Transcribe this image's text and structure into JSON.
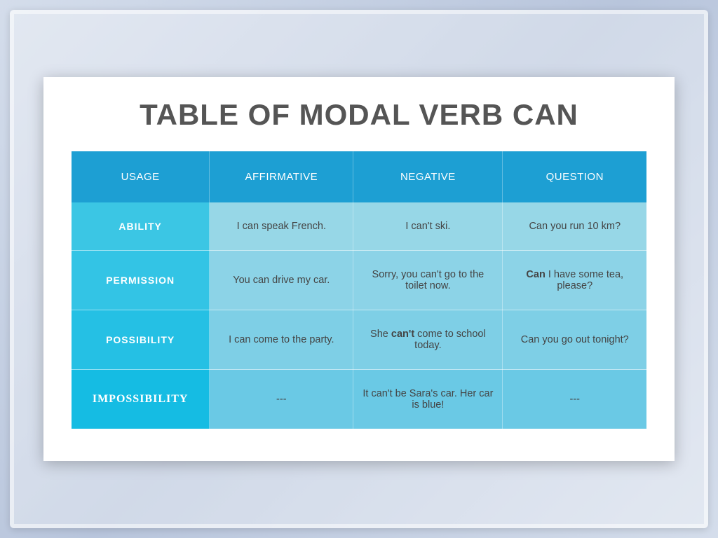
{
  "title": "TABLE OF MODAL VERB CAN",
  "table": {
    "columns": [
      "USAGE",
      "AFFIRMATIVE",
      "NEGATIVE",
      "QUESTION"
    ],
    "rows": [
      {
        "label": "ABILITY",
        "affirmative": "I can speak French.",
        "negative": "I can't ski.",
        "question": "Can you run 10 km?"
      },
      {
        "label": "PERMISSION",
        "affirmative": "You can drive my car.",
        "negative": "Sorry, you can't go to the toilet now.",
        "question_prefix": "Can",
        "question_suffix": " I have some tea, please?"
      },
      {
        "label": "POSSIBILITY",
        "affirmative": "I can come to the party.",
        "negative_prefix": "She ",
        "negative_bold": "can't",
        "negative_suffix": " come to school today.",
        "question": "Can you go out tonight?"
      },
      {
        "label": "IMPOSSIBILITY",
        "affirmative": "---",
        "negative": "It can't be Sara's car. Her car is blue!",
        "question": "---"
      }
    ],
    "header_bg": "#1d9fd3",
    "row_colors": [
      "#97d7e7",
      "#8cd3e7",
      "#7ecfe6",
      "#6ac9e5"
    ],
    "label_colors": [
      "#3bc6e4",
      "#33c4e5",
      "#25c0e4",
      "#15bce3"
    ],
    "title_fontsize": 42,
    "cell_fontsize": 14.5,
    "background_color": "#ffffff"
  }
}
